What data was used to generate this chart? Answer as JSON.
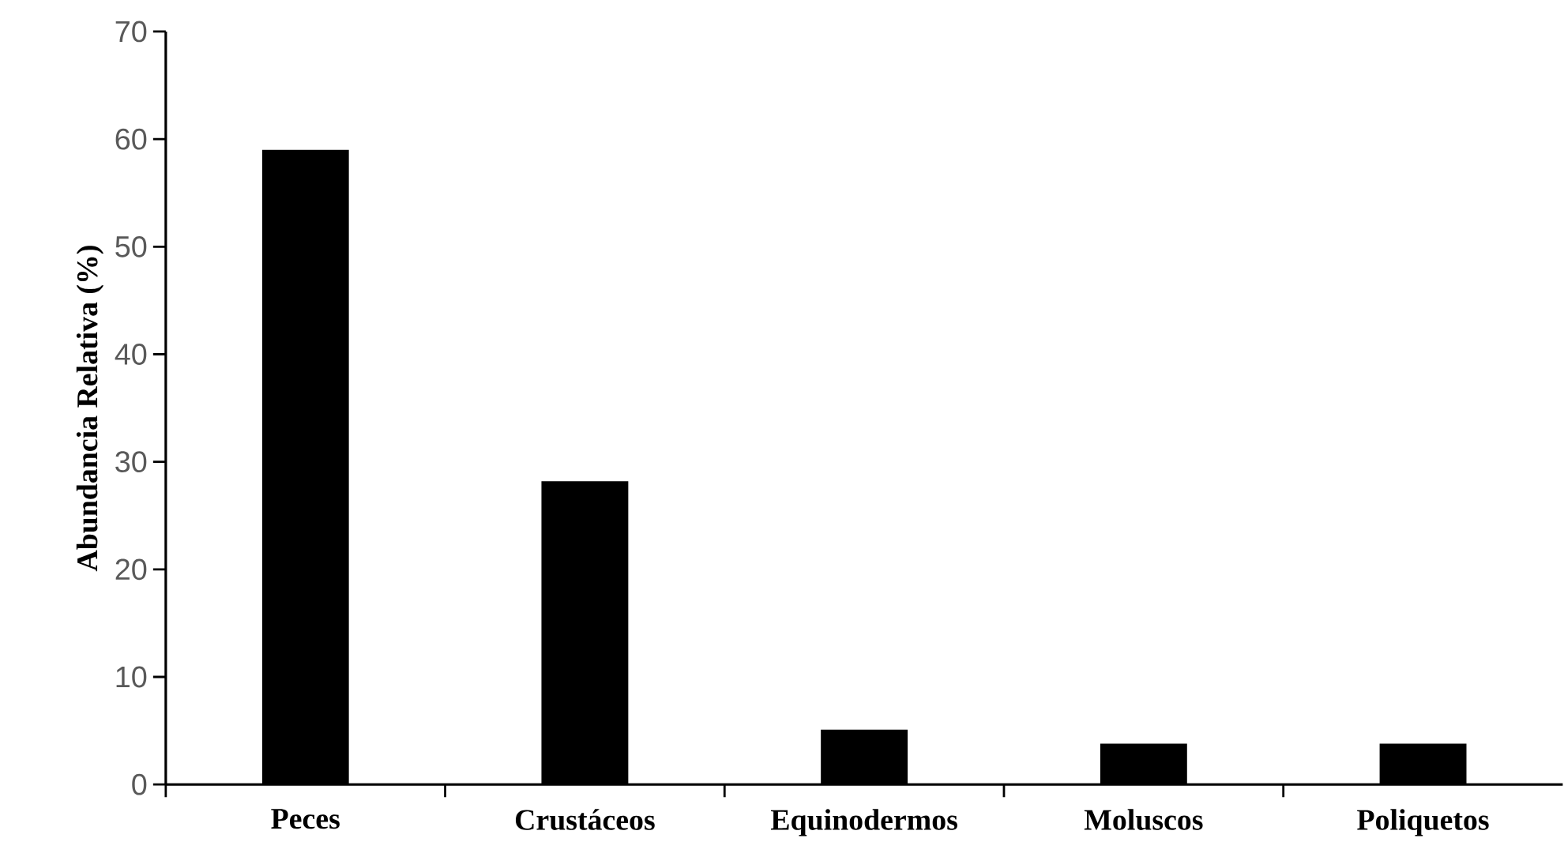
{
  "chart_data": {
    "type": "bar",
    "ylabel": "Abundancia Relativa (%)",
    "categories": [
      "Peces",
      "Crustáceos",
      "Equinodermos",
      "Moluscos",
      "Poliquetos"
    ],
    "values": [
      59,
      28.2,
      5.1,
      3.8,
      3.8
    ],
    "color": "#000000",
    "ylim": [
      0,
      70
    ],
    "yticks": [
      0,
      10,
      20,
      30,
      40,
      50,
      60,
      70
    ],
    "grid": false
  }
}
